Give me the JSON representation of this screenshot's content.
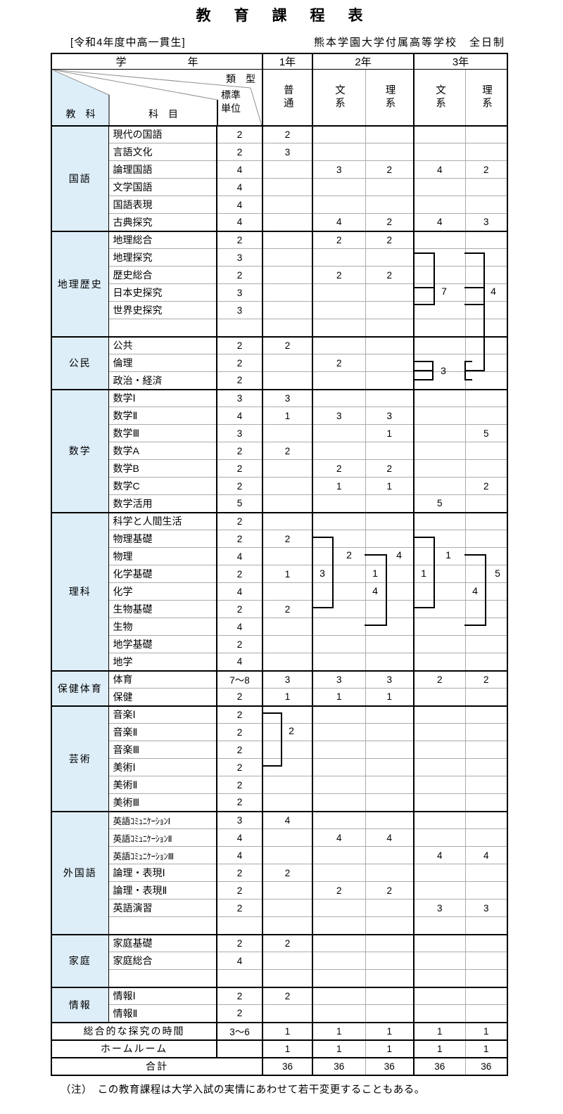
{
  "page": {
    "title": "教　育　課　程　表",
    "subtitle_left": "[令和4年度中高一貫生]",
    "subtitle_right": "熊本学園大学付属高等学校　全日制",
    "note": "（注）　この教育課程は大学入試の実情にあわせて若干変更することもある。"
  },
  "header": {
    "gakunen": "学　年",
    "year1": "1年",
    "year2": "2年",
    "year3": "3年",
    "kyoka": "教　科",
    "kamoku": "科　目",
    "ruikei": "類　型",
    "hyojun": "標準",
    "tani": "単位",
    "futsu": "普通",
    "bunkei": "文系",
    "rikei": "理系"
  },
  "sections": [
    {
      "name": "国語",
      "rows": [
        {
          "subject": "現代の国語",
          "units": "2",
          "values": [
            "2",
            "",
            "",
            "",
            ""
          ]
        },
        {
          "subject": "言語文化",
          "units": "2",
          "values": [
            "3",
            "",
            "",
            "",
            ""
          ]
        },
        {
          "subject": "論理国語",
          "units": "4",
          "values": [
            "",
            "3",
            "2",
            "4",
            "2"
          ]
        },
        {
          "subject": "文学国語",
          "units": "4",
          "values": [
            "",
            "",
            "",
            "",
            ""
          ]
        },
        {
          "subject": "国語表現",
          "units": "4",
          "values": [
            "",
            "",
            "",
            "",
            ""
          ]
        },
        {
          "subject": "古典探究",
          "units": "4",
          "values": [
            "",
            "4",
            "2",
            "4",
            "3"
          ]
        }
      ]
    },
    {
      "name": "地理歴史",
      "rows": [
        {
          "subject": "地理総合",
          "units": "2",
          "values": [
            "",
            "2",
            "2",
            "",
            ""
          ]
        },
        {
          "subject": "地理探究",
          "units": "3",
          "values": [
            "",
            "",
            "",
            "",
            ""
          ]
        },
        {
          "subject": "歴史総合",
          "units": "2",
          "values": [
            "",
            "2",
            "2",
            "",
            ""
          ]
        },
        {
          "subject": "日本史探究",
          "units": "3",
          "values": [
            "",
            "",
            "",
            "",
            ""
          ]
        },
        {
          "subject": "世界史探究",
          "units": "3",
          "values": [
            "",
            "",
            "",
            "",
            ""
          ]
        },
        {
          "subject": "",
          "units": "",
          "values": [
            "",
            "",
            "",
            "",
            ""
          ]
        }
      ]
    },
    {
      "name": "公民",
      "rows": [
        {
          "subject": "公共",
          "units": "2",
          "values": [
            "2",
            "",
            "",
            "",
            ""
          ]
        },
        {
          "subject": "倫理",
          "units": "2",
          "values": [
            "",
            "2",
            "",
            "",
            ""
          ]
        },
        {
          "subject": "政治・経済",
          "units": "2",
          "values": [
            "",
            "",
            "",
            "",
            ""
          ]
        }
      ]
    },
    {
      "name": "数学",
      "rows": [
        {
          "subject": "数学Ⅰ",
          "units": "3",
          "values": [
            "3",
            "",
            "",
            "",
            ""
          ]
        },
        {
          "subject": "数学Ⅱ",
          "units": "4",
          "values": [
            "1",
            "3",
            "3",
            "",
            ""
          ]
        },
        {
          "subject": "数学Ⅲ",
          "units": "3",
          "values": [
            "",
            "",
            "1",
            "",
            "5"
          ]
        },
        {
          "subject": "数学A",
          "units": "2",
          "values": [
            "2",
            "",
            "",
            "",
            ""
          ]
        },
        {
          "subject": "数学B",
          "units": "2",
          "values": [
            "",
            "2",
            "2",
            "",
            ""
          ]
        },
        {
          "subject": "数学C",
          "units": "2",
          "values": [
            "",
            "1",
            "1",
            "",
            "2"
          ]
        },
        {
          "subject": "数学活用",
          "units": "5",
          "values": [
            "",
            "",
            "",
            "5",
            ""
          ]
        }
      ]
    },
    {
      "name": "理科",
      "rows": [
        {
          "subject": "科学と人間生活",
          "units": "2",
          "values": [
            "",
            "",
            "",
            "",
            ""
          ]
        },
        {
          "subject": "物理基礎",
          "units": "2",
          "values": [
            "2",
            "",
            "",
            "",
            ""
          ]
        },
        {
          "subject": "物理",
          "units": "4",
          "values": [
            "",
            "",
            "",
            "",
            ""
          ]
        },
        {
          "subject": "化学基礎",
          "units": "2",
          "values": [
            "1",
            "",
            "",
            "",
            ""
          ]
        },
        {
          "subject": "化学",
          "units": "4",
          "values": [
            "",
            "",
            "",
            "",
            ""
          ]
        },
        {
          "subject": "生物基礎",
          "units": "2",
          "values": [
            "2",
            "",
            "",
            "",
            ""
          ]
        },
        {
          "subject": "生物",
          "units": "4",
          "values": [
            "",
            "",
            "",
            "",
            ""
          ]
        },
        {
          "subject": "地学基礎",
          "units": "2",
          "values": [
            "",
            "",
            "",
            "",
            ""
          ]
        },
        {
          "subject": "地学",
          "units": "4",
          "values": [
            "",
            "",
            "",
            "",
            ""
          ]
        }
      ]
    },
    {
      "name": "保健体育",
      "rows": [
        {
          "subject": "体育",
          "units": "7～8",
          "values": [
            "3",
            "3",
            "3",
            "2",
            "2"
          ]
        },
        {
          "subject": "保健",
          "units": "2",
          "values": [
            "1",
            "1",
            "1",
            "",
            ""
          ]
        }
      ]
    },
    {
      "name": "芸術",
      "rows": [
        {
          "subject": "音楽Ⅰ",
          "units": "2",
          "values": [
            "",
            "",
            "",
            "",
            ""
          ]
        },
        {
          "subject": "音楽Ⅱ",
          "units": "2",
          "values": [
            "",
            "",
            "",
            "",
            ""
          ]
        },
        {
          "subject": "音楽Ⅲ",
          "units": "2",
          "values": [
            "",
            "",
            "",
            "",
            ""
          ]
        },
        {
          "subject": "美術Ⅰ",
          "units": "2",
          "values": [
            "",
            "",
            "",
            "",
            ""
          ]
        },
        {
          "subject": "美術Ⅱ",
          "units": "2",
          "values": [
            "",
            "",
            "",
            "",
            ""
          ]
        },
        {
          "subject": "美術Ⅲ",
          "units": "2",
          "values": [
            "",
            "",
            "",
            "",
            ""
          ]
        }
      ]
    },
    {
      "name": "外国語",
      "rows": [
        {
          "subject": "英語ｺﾐｭﾆｹｰｼｮﾝⅠ",
          "units": "3",
          "values": [
            "4",
            "",
            "",
            "",
            ""
          ]
        },
        {
          "subject": "英語ｺﾐｭﾆｹｰｼｮﾝⅡ",
          "units": "4",
          "values": [
            "",
            "4",
            "4",
            "",
            ""
          ]
        },
        {
          "subject": "英語ｺﾐｭﾆｹｰｼｮﾝⅢ",
          "units": "4",
          "values": [
            "",
            "",
            "",
            "4",
            "4"
          ]
        },
        {
          "subject": "論理・表現Ⅰ",
          "units": "2",
          "values": [
            "2",
            "",
            "",
            "",
            ""
          ]
        },
        {
          "subject": "論理・表現Ⅱ",
          "units": "2",
          "values": [
            "",
            "2",
            "2",
            "",
            ""
          ]
        },
        {
          "subject": "英語演習",
          "units": "2",
          "values": [
            "",
            "",
            "",
            "3",
            "3"
          ]
        },
        {
          "subject": "",
          "units": "",
          "values": [
            "",
            "",
            "",
            "",
            ""
          ]
        }
      ]
    },
    {
      "name": "家庭",
      "rows": [
        {
          "subject": "家庭基礎",
          "units": "2",
          "values": [
            "2",
            "",
            "",
            "",
            ""
          ]
        },
        {
          "subject": "家庭総合",
          "units": "4",
          "values": [
            "",
            "",
            "",
            "",
            ""
          ]
        },
        {
          "subject": "",
          "units": "",
          "values": [
            "",
            "",
            "",
            "",
            ""
          ]
        }
      ]
    },
    {
      "name": "情報",
      "rows": [
        {
          "subject": "情報Ⅰ",
          "units": "2",
          "values": [
            "2",
            "",
            "",
            "",
            ""
          ]
        },
        {
          "subject": "情報Ⅱ",
          "units": "2",
          "values": [
            "",
            "",
            "",
            "",
            ""
          ]
        }
      ]
    }
  ],
  "footer_rows": [
    {
      "label": "総合的な探究の時間",
      "label_span": 2,
      "units": "3～6",
      "values": [
        "1",
        "1",
        "1",
        "1",
        "1"
      ]
    },
    {
      "label": "ホームルーム",
      "label_span": 2,
      "units": "",
      "values": [
        "1",
        "1",
        "1",
        "1",
        "1"
      ]
    },
    {
      "label": "合計",
      "label_span": 3,
      "units": null,
      "values": [
        "36",
        "36",
        "36",
        "36",
        "36"
      ]
    }
  ],
  "overlays": {
    "geo_bun": "7",
    "geo_ri": "4",
    "civ_bun": "3",
    "sci2_bun_in": "3",
    "sci2_bun_out": "2",
    "sci2_ri_in1": "1",
    "sci2_ri_in2": "4",
    "sci2_ri_out": "4",
    "sci3_bun_in": "1",
    "sci3_bun_out": "1",
    "sci3_ri_in": "4",
    "sci3_ri_out": "5",
    "art": "2"
  },
  "colors": {
    "subject_area_bg": "#ddeef9",
    "grid_gray": "#ababab",
    "border_black": "#000000"
  }
}
